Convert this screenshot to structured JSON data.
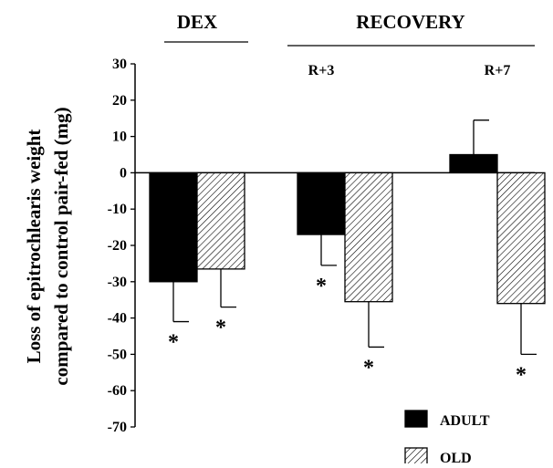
{
  "chart_data": {
    "type": "bar",
    "ylabel_line1": "Loss of epitrochlearis weight",
    "ylabel_line2": "compared to control pair-fed (mg)",
    "ylim": [
      -70,
      30
    ],
    "yticks": [
      "30",
      "20",
      "10",
      "0",
      "-10",
      "-20",
      "-30",
      "-40",
      "-50",
      "-60",
      "-70"
    ],
    "group_labels": {
      "dex": "DEX",
      "recovery": "RECOVERY"
    },
    "categories": [
      "DEX",
      "R+3",
      "R+7"
    ],
    "series": [
      {
        "name": "ADULT",
        "color": "#000000",
        "pattern": "solid",
        "values": [
          -30,
          -17,
          5
        ],
        "errors": [
          11,
          8.5,
          9.5
        ],
        "significance": [
          "*",
          "*",
          ""
        ]
      },
      {
        "name": "OLD",
        "color": "#ffffff",
        "pattern": "hatched",
        "values": [
          -26.5,
          -35.5,
          -36
        ],
        "errors": [
          10.5,
          12.5,
          14
        ],
        "significance": [
          "*",
          "*",
          "*"
        ]
      }
    ],
    "legend_position": "bottom-right"
  }
}
